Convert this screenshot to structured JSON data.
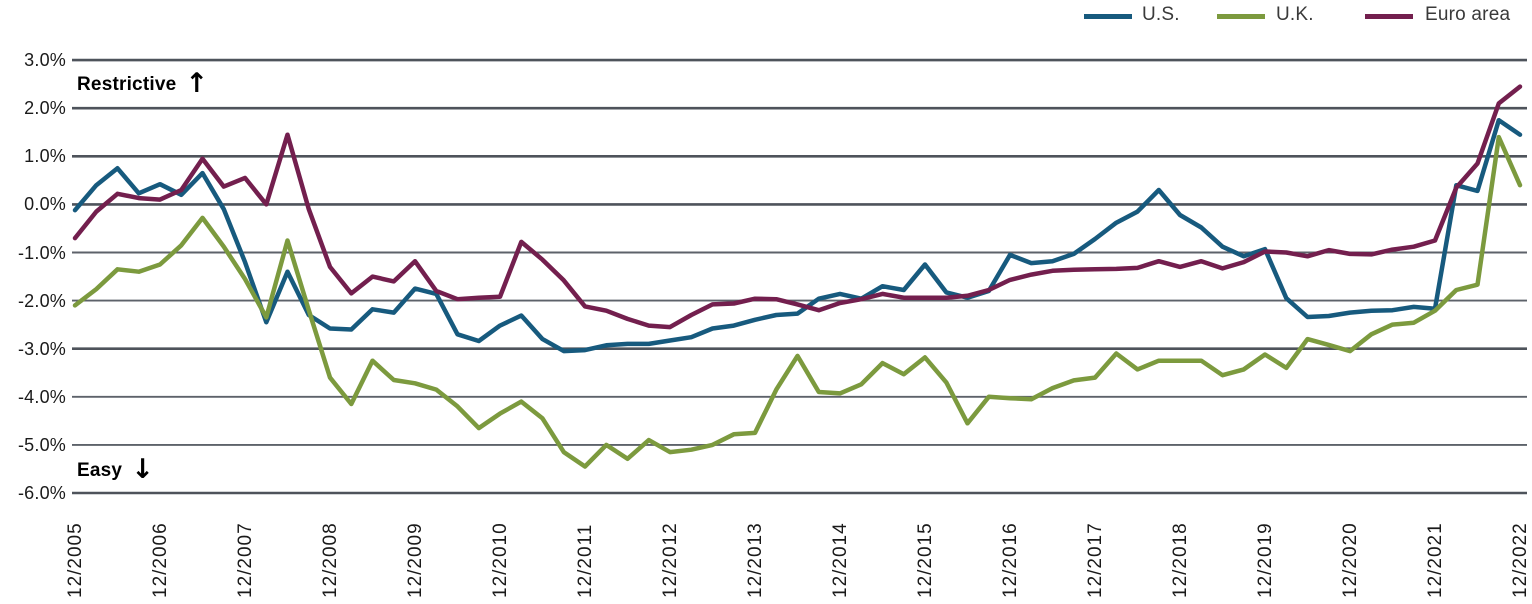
{
  "legend": {
    "items": [
      {
        "id": "us",
        "label": "U.S.",
        "color": "#175a7e"
      },
      {
        "id": "uk",
        "label": "U.K.",
        "color": "#7c9a3e"
      },
      {
        "id": "euro",
        "label": "Euro area",
        "color": "#731f4e"
      }
    ]
  },
  "annotations": {
    "top": {
      "label": "Restrictive",
      "arrow": "↑"
    },
    "bottom": {
      "label": "Easy",
      "arrow": "↓"
    }
  },
  "chart_data": {
    "type": "line",
    "title": "",
    "xlabel": "",
    "ylabel": "",
    "legend_position": "top-right",
    "grid": {
      "on": true,
      "major_color": "#4e535b",
      "minor_color": "#5d626a"
    },
    "x_axis": {
      "start": "12/2005",
      "end": "12/2022",
      "points_per_year": 4,
      "ticks": [
        "12/2005",
        "12/2006",
        "12/2007",
        "12/2008",
        "12/2009",
        "12/2010",
        "12/2011",
        "12/2012",
        "12/2013",
        "12/2014",
        "12/2015",
        "12/2016",
        "12/2017",
        "12/2018",
        "12/2019",
        "12/2020",
        "12/2021",
        "12/2022"
      ]
    },
    "y_axis": {
      "range": [
        -6,
        3
      ],
      "ticks": [
        {
          "label": "3.0%",
          "value": 3,
          "major": true
        },
        {
          "label": "2.0%",
          "value": 2,
          "major": true
        },
        {
          "label": "1.0%",
          "value": 1,
          "major": true
        },
        {
          "label": "0.0%",
          "value": 0,
          "major": true
        },
        {
          "label": "-1.0%",
          "value": -1,
          "major": false
        },
        {
          "label": "-2.0%",
          "value": -2,
          "major": false
        },
        {
          "label": "-3.0%",
          "value": -3,
          "major": true
        },
        {
          "label": "-4.0%",
          "value": -4,
          "major": false
        },
        {
          "label": "-5.0%",
          "value": -5,
          "major": false
        },
        {
          "label": "-6.0%",
          "value": -6,
          "major": true
        }
      ]
    },
    "series": [
      {
        "id": "us",
        "name": "U.S.",
        "color": "#175a7e",
        "values": [
          -0.12,
          0.4,
          0.75,
          0.23,
          0.42,
          0.2,
          0.65,
          -0.1,
          -1.2,
          -2.45,
          -1.4,
          -2.3,
          -2.58,
          -2.6,
          -2.18,
          -2.25,
          -1.75,
          -1.86,
          -2.7,
          -2.84,
          -2.52,
          -2.31,
          -2.8,
          -3.05,
          -3.03,
          -2.93,
          -2.9,
          -2.9,
          -2.83,
          -2.76,
          -2.58,
          -2.52,
          -2.4,
          -2.3,
          -2.27,
          -1.96,
          -1.86,
          -1.96,
          -1.7,
          -1.78,
          -1.25,
          -1.83,
          -1.94,
          -1.8,
          -1.05,
          -1.22,
          -1.18,
          -1.03,
          -0.72,
          -0.38,
          -0.15,
          0.3,
          -0.22,
          -0.48,
          -0.88,
          -1.08,
          -0.93,
          -1.95,
          -2.34,
          -2.32,
          -2.25,
          -2.21,
          -2.2,
          -2.13,
          -2.17,
          0.4,
          0.28,
          1.75,
          1.45
        ]
      },
      {
        "id": "uk",
        "name": "U.K.",
        "color": "#7c9a3e",
        "values": [
          -2.1,
          -1.76,
          -1.35,
          -1.4,
          -1.25,
          -0.85,
          -0.28,
          -0.88,
          -1.55,
          -2.35,
          -0.75,
          -2.2,
          -3.6,
          -4.15,
          -3.25,
          -3.65,
          -3.72,
          -3.85,
          -4.2,
          -4.65,
          -4.35,
          -4.1,
          -4.45,
          -5.15,
          -5.45,
          -5.0,
          -5.29,
          -4.9,
          -5.15,
          -5.1,
          -5.0,
          -4.78,
          -4.75,
          -3.85,
          -3.15,
          -3.9,
          -3.93,
          -3.74,
          -3.3,
          -3.53,
          -3.18,
          -3.7,
          -4.55,
          -4.0,
          -4.03,
          -4.05,
          -3.82,
          -3.66,
          -3.6,
          -3.1,
          -3.43,
          -3.25,
          -3.25,
          -3.25,
          -3.55,
          -3.43,
          -3.12,
          -3.4,
          -2.8,
          -2.92,
          -3.05,
          -2.7,
          -2.5,
          -2.46,
          -2.21,
          -1.78,
          -1.67,
          1.4,
          0.4
        ]
      },
      {
        "id": "euro",
        "name": "Euro area",
        "color": "#731f4e",
        "values": [
          -0.7,
          -0.15,
          0.22,
          0.13,
          0.1,
          0.3,
          0.95,
          0.37,
          0.55,
          0.0,
          1.45,
          -0.1,
          -1.3,
          -1.85,
          -1.5,
          -1.6,
          -1.18,
          -1.8,
          -1.97,
          -1.94,
          -1.92,
          -0.78,
          -1.15,
          -1.58,
          -2.12,
          -2.21,
          -2.38,
          -2.52,
          -2.55,
          -2.3,
          -2.08,
          -2.06,
          -1.96,
          -1.97,
          -2.08,
          -2.2,
          -2.05,
          -1.97,
          -1.86,
          -1.94,
          -1.94,
          -1.94,
          -1.9,
          -1.78,
          -1.57,
          -1.46,
          -1.38,
          -1.36,
          -1.35,
          -1.34,
          -1.32,
          -1.18,
          -1.3,
          -1.18,
          -1.33,
          -1.2,
          -0.98,
          -1.0,
          -1.08,
          -0.95,
          -1.03,
          -1.04,
          -0.94,
          -0.88,
          -0.75,
          0.35,
          0.85,
          2.1,
          2.45
        ]
      }
    ]
  }
}
